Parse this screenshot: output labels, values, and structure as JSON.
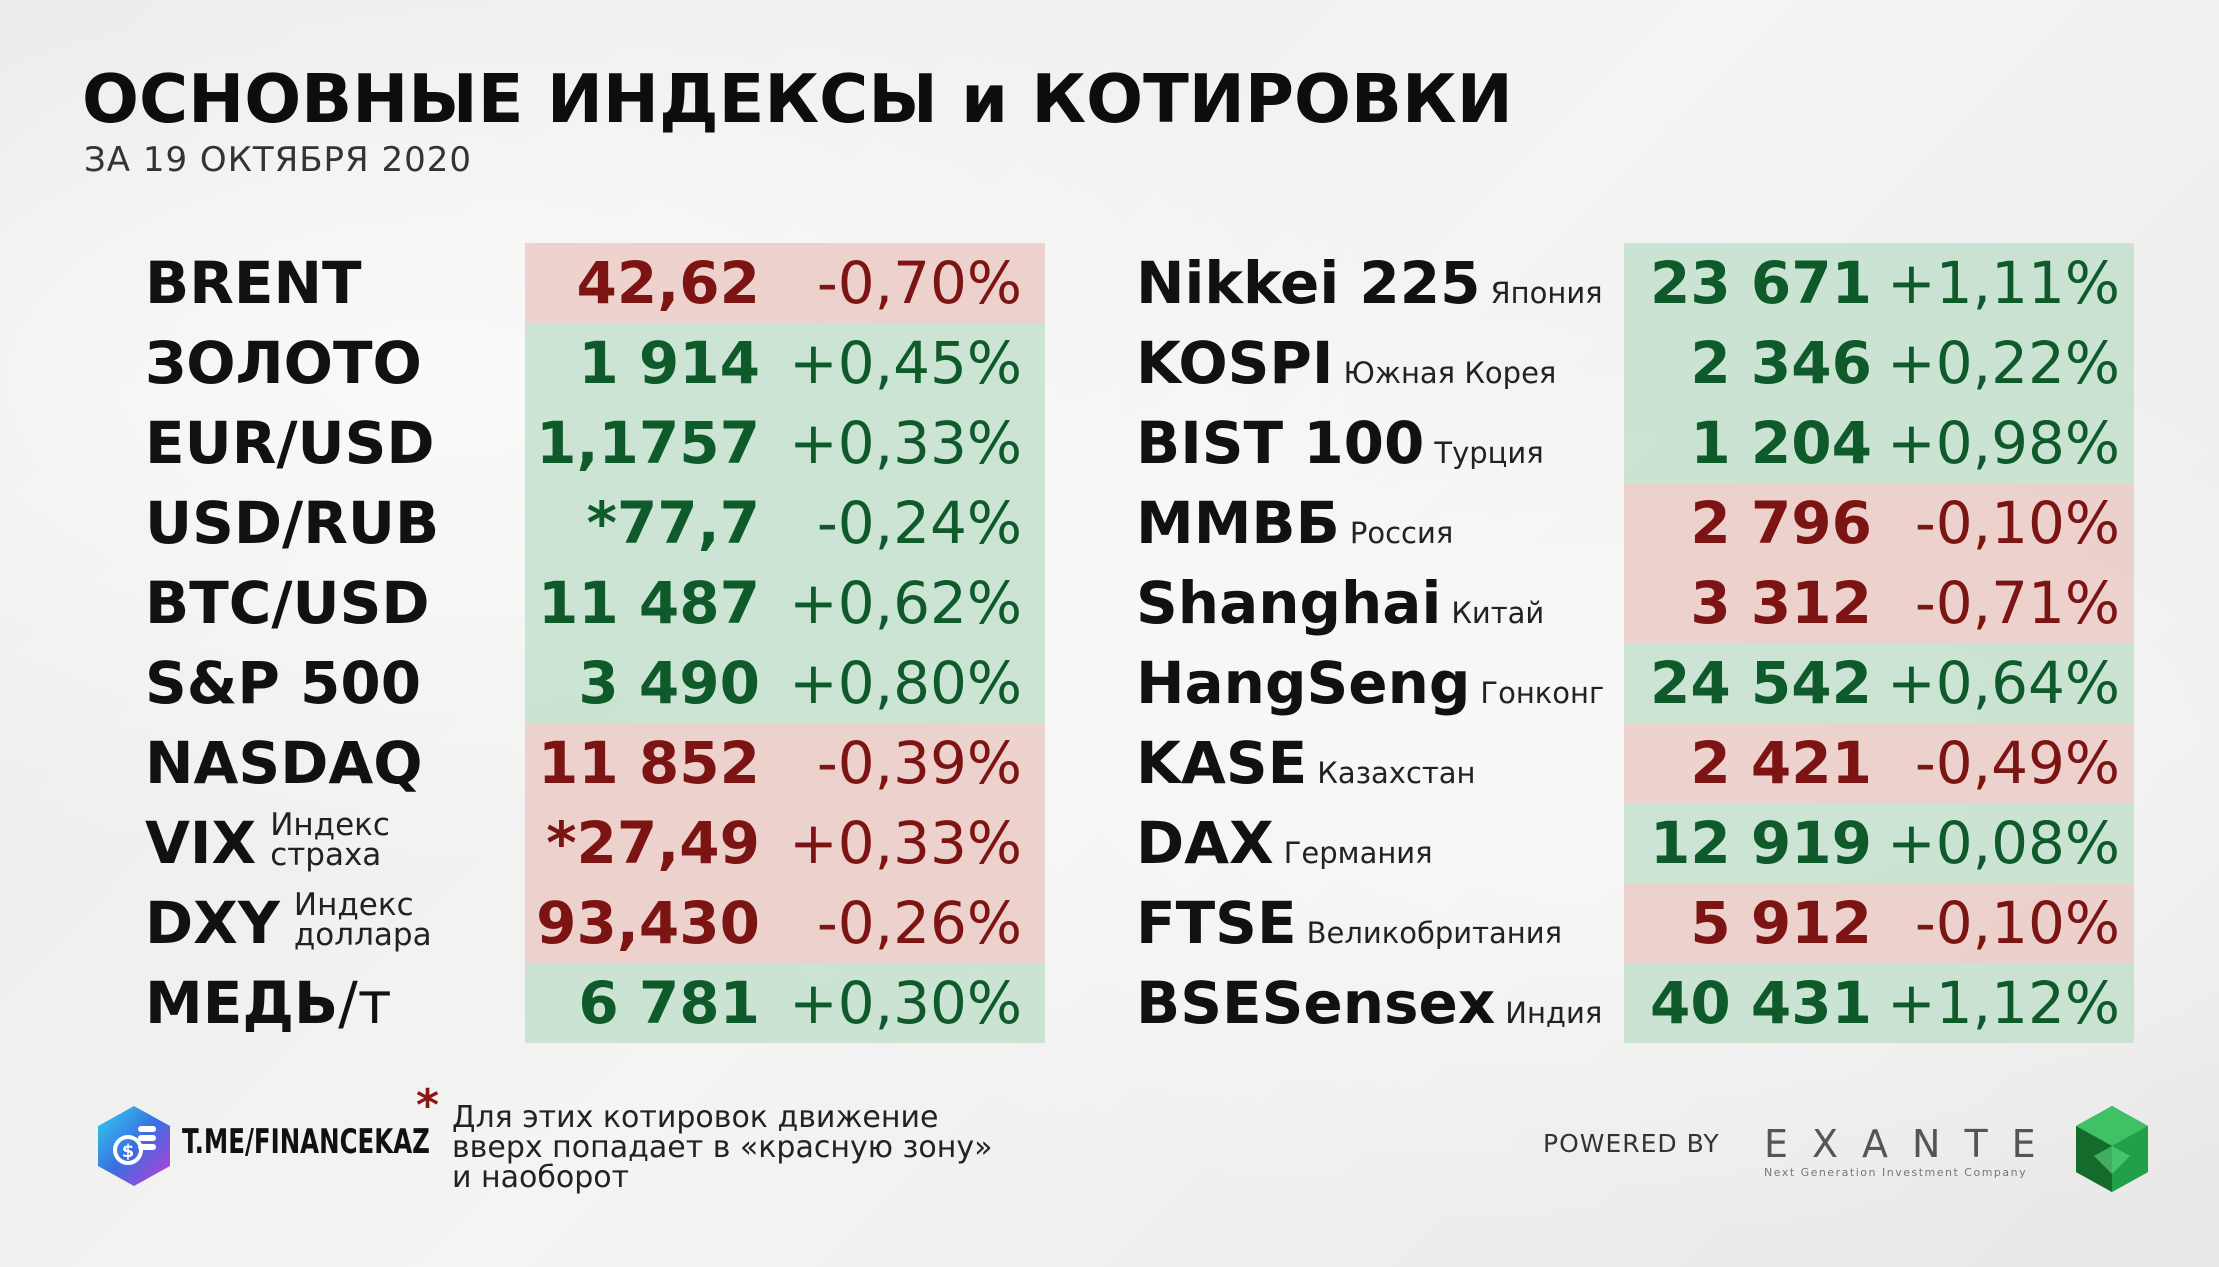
{
  "header": {
    "title": "ОСНОВНЫЕ ИНДЕКСЫ и КОТИРОВКИ",
    "subtitle": "ЗА 19 ОКТЯБРЯ 2020"
  },
  "left_table": [
    {
      "name": "BRENT",
      "value": "42,62",
      "change": "-0,70%",
      "trend": "down"
    },
    {
      "name": "ЗОЛОТО",
      "value": "1 914",
      "change": "+0,45%",
      "trend": "up"
    },
    {
      "name": "EUR/USD",
      "value": "1,1757",
      "change": "+0,33%",
      "trend": "up"
    },
    {
      "name": "USD/RUB",
      "value": "*77,7",
      "change": "-0,24%",
      "trend": "up"
    },
    {
      "name": "BTC/USD",
      "value": "11 487",
      "change": "+0,62%",
      "trend": "up"
    },
    {
      "name": "S&P 500",
      "value": "3 490",
      "change": "+0,80%",
      "trend": "up"
    },
    {
      "name": "NASDAQ",
      "value": "11 852",
      "change": "-0,39%",
      "trend": "down"
    },
    {
      "name": "VIX",
      "sub_line1": "Индекс",
      "sub_line2": "страха",
      "value": "*27,49",
      "change": "+0,33%",
      "trend": "down"
    },
    {
      "name": "DXY",
      "sub_line1": "Индекс",
      "sub_line2": "доллара",
      "value": "93,430",
      "change": "-0,26%",
      "trend": "down"
    },
    {
      "name": "МЕДЬ",
      "suffix": "/т",
      "value": "6 781",
      "change": "+0,30%",
      "trend": "up"
    }
  ],
  "right_table": [
    {
      "name": "Nikkei 225",
      "sub": "Япония",
      "value": "23 671",
      "change": "+1,11%",
      "trend": "up"
    },
    {
      "name": "KOSPI",
      "sub": "Южная Корея",
      "value": "2 346",
      "change": "+0,22%",
      "trend": "up"
    },
    {
      "name": "BIST 100",
      "sub": "Турция",
      "value": "1 204",
      "change": "+0,98%",
      "trend": "up"
    },
    {
      "name": "ММВБ",
      "sub": "Россия",
      "value": "2 796",
      "change": "-0,10%",
      "trend": "down"
    },
    {
      "name": "Shanghai",
      "sub": "Китай",
      "value": "3 312",
      "change": "-0,71%",
      "trend": "down"
    },
    {
      "name": "HangSeng",
      "sub": "Гонконг",
      "value": "24 542",
      "change": "+0,64%",
      "trend": "up"
    },
    {
      "name": "KASE",
      "sub": "Казахстан",
      "value": "2 421",
      "change": "-0,49%",
      "trend": "down"
    },
    {
      "name": "DAX",
      "sub": "Германия",
      "value": "12 919",
      "change": "+0,08%",
      "trend": "up"
    },
    {
      "name": "FTSE",
      "sub": "Великобритания",
      "value": "5 912",
      "change": "-0,10%",
      "trend": "down"
    },
    {
      "name": "BSESensex",
      "sub": "Индия",
      "value": "40 431",
      "change": "+1,12%",
      "trend": "up"
    }
  ],
  "footer": {
    "channel": "T.ME/FINANCEKAZ",
    "asterisk": "*",
    "note_line1": "Для этих котировок движение",
    "note_line2": "вверх попадает в «красную зону»",
    "note_line3": "и наоборот",
    "powered_by": "POWERED BY",
    "brand": "EXANTE",
    "brand_tagline": "Next Generation Investment Company"
  },
  "colors": {
    "up_text": "#0f5a2a",
    "down_text": "#7d1414",
    "up_band": "#bedec8",
    "down_band": "#ebc8c3"
  }
}
